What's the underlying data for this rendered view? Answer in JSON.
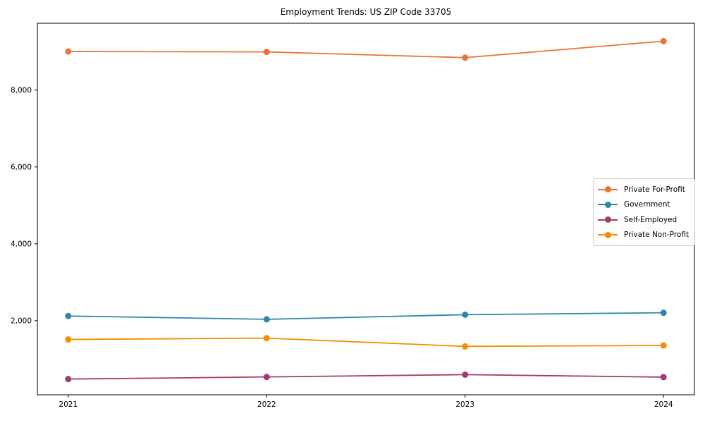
{
  "figure": {
    "background": "#ffffff",
    "axis_color": "#000000",
    "text_color": "#000000",
    "legend_border_color": "#cccccc"
  },
  "chart_data": {
    "type": "line",
    "title": "Employment Trends: US ZIP Code 33705",
    "categories": [
      "2021",
      "2022",
      "2023",
      "2024"
    ],
    "series": [
      {
        "name": "Private For-Profit",
        "color": "#E8743B",
        "values": [
          9005,
          8995,
          8845,
          9275
        ]
      },
      {
        "name": "Government",
        "color": "#2E86AB",
        "values": [
          2120,
          2035,
          2155,
          2205
        ]
      },
      {
        "name": "Self-Employed",
        "color": "#A23B72",
        "values": [
          480,
          535,
          595,
          530
        ]
      },
      {
        "name": "Private Non-Profit",
        "color": "#F18F01",
        "values": [
          1510,
          1545,
          1330,
          1355
        ]
      }
    ],
    "marker": "circle",
    "xlabel": "",
    "ylabel": "",
    "yticks": [
      2000,
      4000,
      6000,
      8000
    ],
    "ytick_labels": [
      "2,000",
      "4,000",
      "6,000",
      "8,000"
    ],
    "ylim": [
      70,
      9740
    ],
    "grid": false,
    "legend_position": "center right"
  }
}
